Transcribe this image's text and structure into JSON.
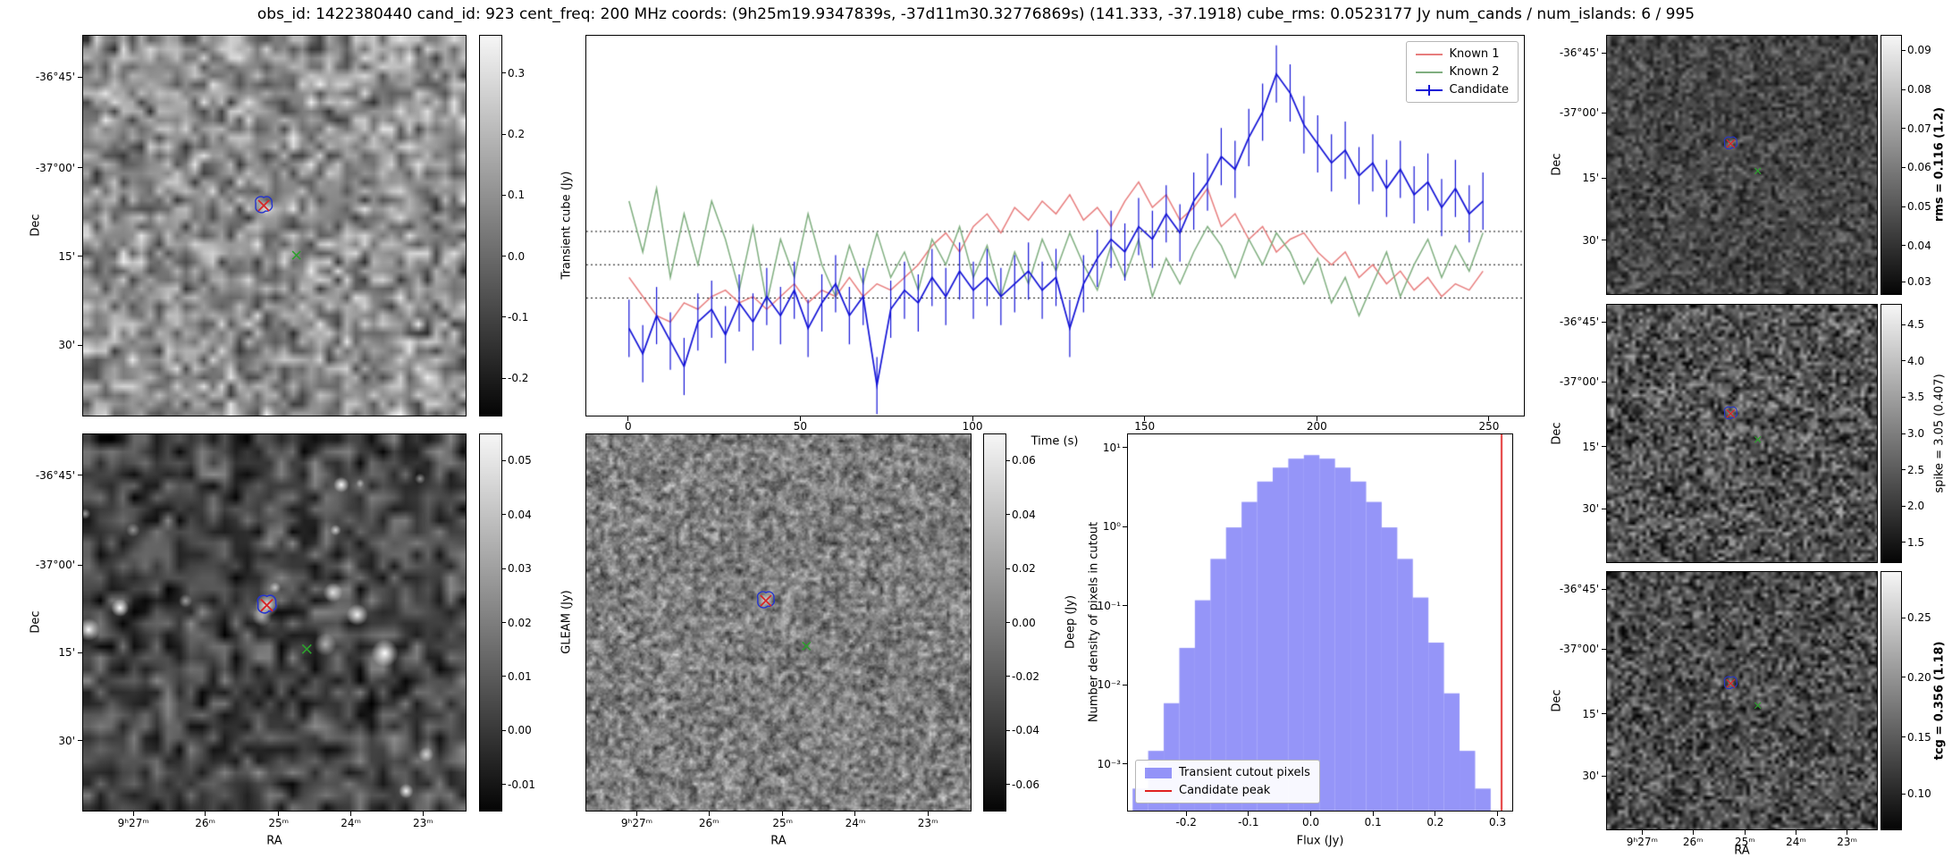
{
  "title": "obs_id: 1422380440 cand_id: 923 cent_freq: 200 MHz coords: (9h25m19.9347839s, -37d11m30.32776869s) (141.333, -37.1918) cube_rms: 0.0523177 Jy num_cands / num_islands: 6 / 995",
  "markers": {
    "candidate_color": "#d62728",
    "known_source_color": "#2ca02c",
    "island_contour_color": "#2433cf"
  },
  "panels": {
    "transient": {
      "ylabel": "Dec",
      "dec_ticks": [
        "-36°45'",
        "-37°00'",
        "15'",
        "30'"
      ],
      "colorbar": {
        "label": "Transient cube (Jy)",
        "ticks": [
          "0.3",
          "0.2",
          "0.1",
          "0.0",
          "-0.1",
          "-0.2"
        ],
        "bold": false
      }
    },
    "gleam": {
      "ylabel": "Dec",
      "xlabel": "RA",
      "dec_ticks": [
        "-36°45'",
        "-37°00'",
        "15'",
        "30'"
      ],
      "ra_ticks": [
        "9ʰ27ᵐ",
        "26ᵐ",
        "25ᵐ",
        "24ᵐ",
        "23ᵐ"
      ],
      "colorbar": {
        "label": "GLEAM (Jy)",
        "ticks": [
          "0.05",
          "0.04",
          "0.03",
          "0.02",
          "0.01",
          "0.00",
          "-0.01"
        ],
        "bold": false
      }
    },
    "deep": {
      "xlabel": "RA",
      "ra_ticks": [
        "9ʰ27ᵐ",
        "26ᵐ",
        "25ᵐ",
        "24ᵐ",
        "23ᵐ"
      ],
      "colorbar": {
        "label": "Deep (Jy)",
        "ticks": [
          "0.06",
          "0.04",
          "0.02",
          "0.00",
          "-0.02",
          "-0.04",
          "-0.06"
        ],
        "bold": false
      }
    },
    "rms": {
      "ylabel": "Dec",
      "dec_ticks": [
        "-36°45'",
        "-37°00'",
        "15'",
        "30'"
      ],
      "colorbar": {
        "label": "rms = 0.116 (1.2)",
        "ticks": [
          "0.09",
          "0.08",
          "0.07",
          "0.06",
          "0.05",
          "0.04",
          "0.03"
        ],
        "bold": true
      }
    },
    "spike": {
      "ylabel": "Dec",
      "dec_ticks": [
        "-36°45'",
        "-37°00'",
        "15'",
        "30'"
      ],
      "colorbar": {
        "label": "spike = 3.05 (0.407)",
        "ticks": [
          "4.5",
          "4.0",
          "3.5",
          "3.0",
          "2.5",
          "2.0",
          "1.5"
        ],
        "bold": false
      }
    },
    "tcg": {
      "ylabel": "Dec",
      "xlabel": "RA",
      "dec_ticks": [
        "-36°45'",
        "-37°00'",
        "15'",
        "30'"
      ],
      "ra_ticks": [
        "9ʰ27ᵐ",
        "26ᵐ",
        "25ᵐ",
        "24ᵐ",
        "23ᵐ"
      ],
      "colorbar": {
        "label": "tcg = 0.356 (1.18)",
        "ticks": [
          "0.25",
          "0.20",
          "0.15",
          "0.10"
        ],
        "bold": true
      }
    }
  },
  "chart_data": [
    {
      "type": "line",
      "title": "",
      "xlabel": "Time (s)",
      "ylabel": "",
      "xlim": [
        -12.4,
        260.4
      ],
      "ylim": [
        -0.24,
        0.36
      ],
      "x_ticks": [
        0,
        50,
        100,
        150,
        200,
        250
      ],
      "x_tick_labels": [
        "0",
        "50",
        "100",
        "150",
        "200",
        "250"
      ],
      "hlines_dotted": [
        0.0523,
        0.0,
        -0.0523
      ],
      "legend_position": "upper right",
      "x": [
        0,
        4,
        8,
        12,
        16,
        20,
        24,
        28,
        32,
        36,
        40,
        44,
        48,
        52,
        56,
        60,
        64,
        68,
        72,
        76,
        80,
        84,
        88,
        92,
        96,
        100,
        104,
        108,
        112,
        116,
        120,
        124,
        128,
        132,
        136,
        140,
        144,
        148,
        152,
        156,
        160,
        164,
        168,
        172,
        176,
        180,
        184,
        188,
        192,
        196,
        200,
        204,
        208,
        212,
        216,
        220,
        224,
        228,
        232,
        236,
        240,
        244,
        248
      ],
      "series": [
        {
          "name": "Known 1",
          "color": "#e77c7c",
          "values": [
            -0.02,
            -0.05,
            -0.08,
            -0.09,
            -0.06,
            -0.07,
            -0.05,
            -0.04,
            -0.06,
            -0.05,
            -0.07,
            -0.05,
            -0.03,
            -0.06,
            -0.04,
            -0.05,
            -0.02,
            -0.05,
            -0.03,
            -0.04,
            -0.02,
            0.0,
            0.03,
            0.05,
            0.02,
            0.06,
            0.08,
            0.05,
            0.09,
            0.07,
            0.1,
            0.08,
            0.11,
            0.07,
            0.09,
            0.06,
            0.1,
            0.13,
            0.09,
            0.11,
            0.07,
            0.09,
            0.12,
            0.06,
            0.08,
            0.04,
            0.06,
            0.02,
            0.04,
            0.05,
            0.02,
            0.0,
            0.02,
            -0.02,
            0.0,
            -0.03,
            -0.01,
            -0.04,
            -0.02,
            -0.05,
            -0.03,
            -0.04,
            -0.01
          ]
        },
        {
          "name": "Known 2",
          "color": "#7fae7f",
          "values": [
            0.1,
            0.02,
            0.12,
            -0.02,
            0.08,
            0.0,
            0.1,
            0.04,
            -0.04,
            0.06,
            -0.06,
            0.04,
            -0.02,
            0.08,
            0.0,
            -0.05,
            0.03,
            -0.03,
            0.05,
            -0.02,
            0.02,
            -0.04,
            0.04,
            0.0,
            0.06,
            -0.02,
            0.03,
            -0.05,
            0.02,
            -0.03,
            0.04,
            -0.01,
            0.05,
            0.0,
            -0.04,
            0.03,
            -0.02,
            0.04,
            -0.05,
            0.01,
            -0.03,
            0.02,
            0.06,
            0.03,
            -0.02,
            0.04,
            0.0,
            0.05,
            0.02,
            -0.03,
            0.01,
            -0.06,
            -0.02,
            -0.08,
            -0.03,
            0.02,
            -0.05,
            0.0,
            0.04,
            -0.02,
            0.03,
            -0.01,
            0.05
          ]
        },
        {
          "name": "Candidate",
          "color": "#1212d6",
          "yerr": 0.045,
          "values": [
            -0.1,
            -0.14,
            -0.08,
            -0.12,
            -0.16,
            -0.09,
            -0.07,
            -0.11,
            -0.06,
            -0.09,
            -0.05,
            -0.08,
            -0.04,
            -0.1,
            -0.06,
            -0.03,
            -0.08,
            -0.05,
            -0.19,
            -0.07,
            -0.04,
            -0.06,
            -0.02,
            -0.05,
            -0.01,
            -0.04,
            -0.02,
            -0.05,
            -0.03,
            -0.01,
            -0.04,
            -0.02,
            -0.1,
            -0.03,
            0.01,
            0.04,
            0.02,
            0.06,
            0.04,
            0.08,
            0.05,
            0.1,
            0.13,
            0.17,
            0.15,
            0.2,
            0.24,
            0.3,
            0.27,
            0.22,
            0.19,
            0.16,
            0.18,
            0.14,
            0.16,
            0.12,
            0.15,
            0.11,
            0.13,
            0.09,
            0.12,
            0.08,
            0.1
          ]
        }
      ]
    },
    {
      "type": "bar",
      "subtype": "histogram",
      "xlabel": "Flux (Jy)",
      "ylabel": "Number density of pixels in cutout",
      "yscale": "log",
      "xlim": [
        -0.295,
        0.325
      ],
      "ylim": [
        0.00025,
        15
      ],
      "x_ticks": [
        -0.2,
        -0.1,
        0.0,
        0.1,
        0.2,
        0.3
      ],
      "x_tick_labels": [
        "-0.2",
        "-0.1",
        "0.0",
        "0.1",
        "0.2",
        "0.3"
      ],
      "y_ticks": [
        "10¹",
        "10⁰",
        "10⁻¹",
        "10⁻²",
        "10⁻³"
      ],
      "y_tick_exponents": [
        1,
        0,
        -1,
        -2,
        -3
      ],
      "bin_width": 0.025,
      "bin_centers": [
        -0.275,
        -0.25,
        -0.225,
        -0.2,
        -0.175,
        -0.15,
        -0.125,
        -0.1,
        -0.075,
        -0.05,
        -0.025,
        0.0,
        0.025,
        0.05,
        0.075,
        0.1,
        0.125,
        0.15,
        0.175,
        0.2,
        0.225,
        0.25,
        0.275
      ],
      "values": [
        0.0005,
        0.0015,
        0.006,
        0.03,
        0.12,
        0.4,
        1.0,
        2.1,
        3.8,
        5.7,
        7.4,
        8.2,
        7.4,
        5.7,
        3.8,
        2.1,
        1.0,
        0.4,
        0.13,
        0.035,
        0.008,
        0.0015,
        0.0005
      ],
      "bar_color": "rgba(108,108,245,0.72)",
      "vline": {
        "x": 0.305,
        "color": "#e02020"
      },
      "legend": [
        "Transient cutout pixels",
        "Candidate peak"
      ],
      "legend_position": "lower left"
    }
  ]
}
